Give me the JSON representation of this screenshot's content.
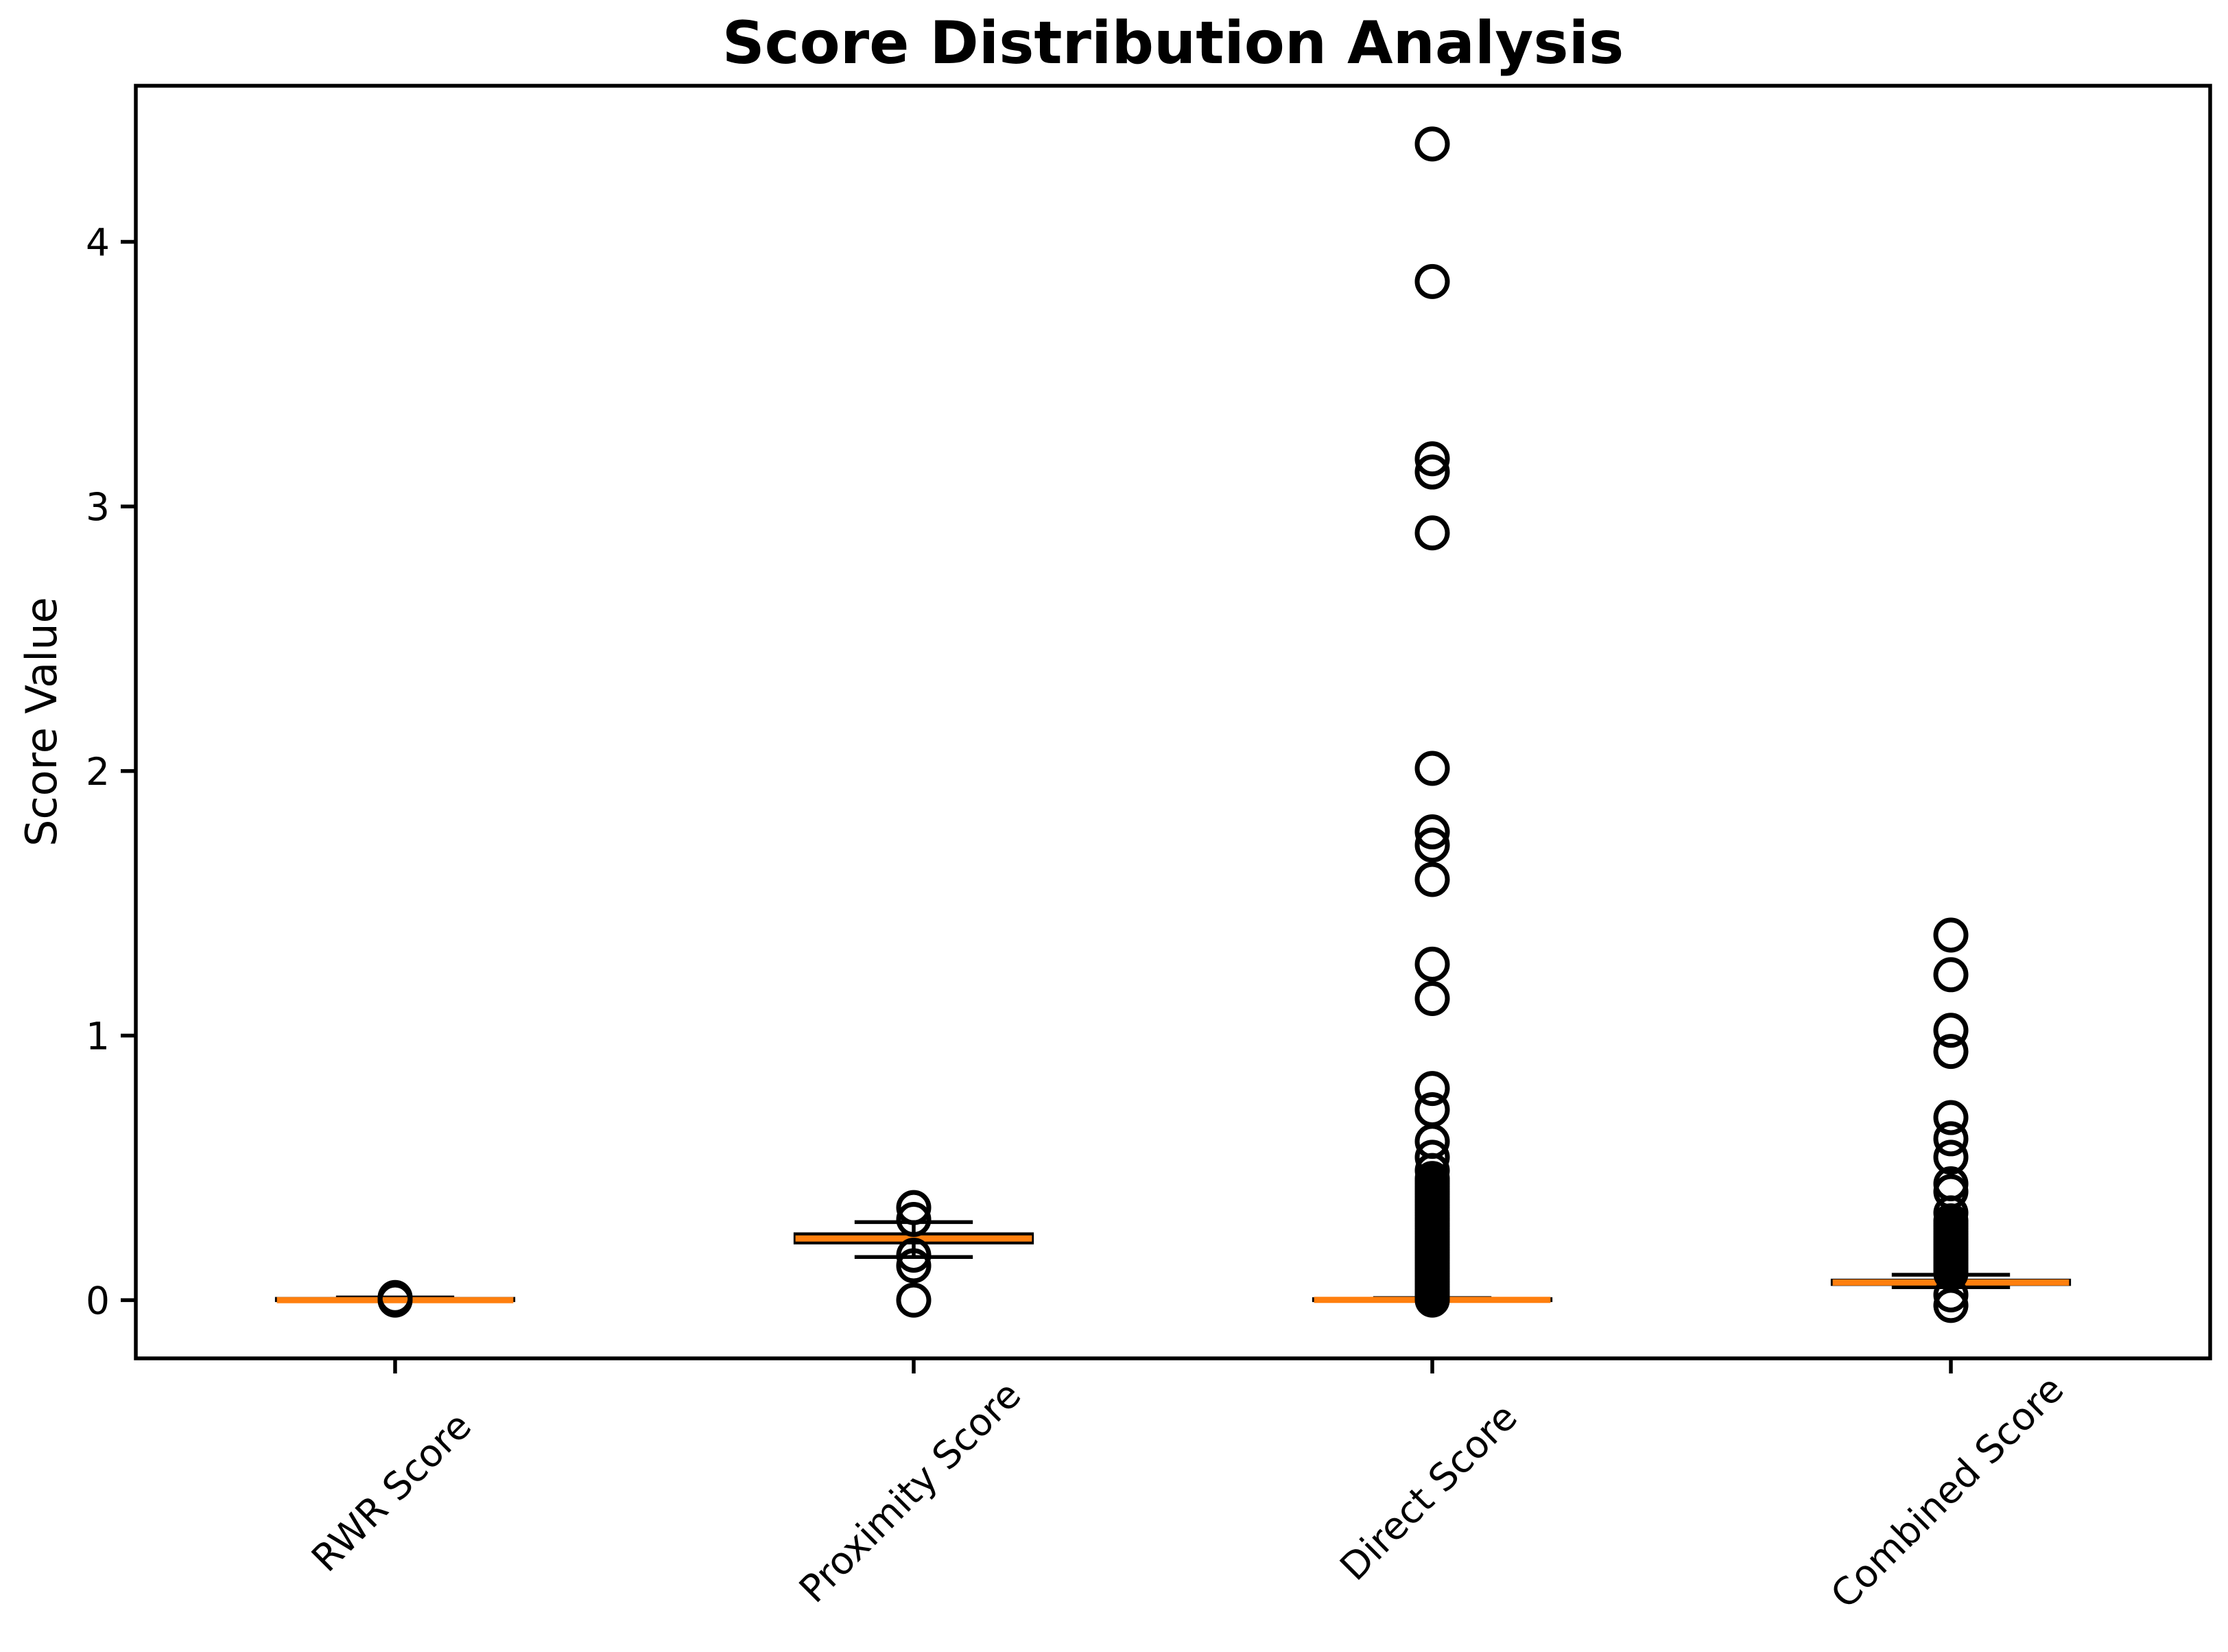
{
  "figure": {
    "background": "#ffffff"
  },
  "chart_data": {
    "type": "boxplot",
    "title": "Score Distribution Analysis",
    "ylabel": "Score Value",
    "xlabel": "",
    "grid": false,
    "legend_position": "none",
    "categories": [
      "RWR Score",
      "Proximity Score",
      "Direct Score",
      "Combined Score"
    ],
    "positions": [
      1,
      2,
      3,
      4
    ],
    "y_ticks": [
      0,
      1,
      2,
      3,
      4
    ],
    "ylim": [
      -0.22,
      4.59
    ],
    "xlim": [
      0.5,
      4.5
    ],
    "box_width": 0.456,
    "cap_width": 0.228,
    "colors": {
      "median": "#ff7f0e",
      "box_edge": "#000000",
      "whisker": "#000000",
      "flier_edge": "#000000",
      "spine": "#000000",
      "background": "#ffffff"
    },
    "series": [
      {
        "name": "RWR Score",
        "position": 1,
        "med": 0.0,
        "q1": 0.0,
        "q3": 0.005,
        "whislo": 0.0,
        "whishi": 0.01,
        "fliers": [
          0.01,
          0.0
        ]
      },
      {
        "name": "Proximity Score",
        "position": 2,
        "med": 0.233,
        "q1": 0.218,
        "q3": 0.249,
        "whislo": 0.163,
        "whishi": 0.295,
        "fliers": [
          0.35,
          0.305,
          0.17,
          0.13,
          0.0
        ]
      },
      {
        "name": "Direct Score",
        "position": 3,
        "med": 0.001,
        "q1": 0.0,
        "q3": 0.004,
        "whislo": 0.0,
        "whishi": 0.008,
        "fliers": [
          4.37,
          3.85,
          3.18,
          3.13,
          2.9,
          2.01,
          1.77,
          1.72,
          1.59,
          1.27,
          1.14,
          0.8,
          0.72,
          0.6,
          0.54,
          0.49,
          0.46,
          0.45,
          0.44,
          0.43,
          0.42,
          0.41,
          0.4,
          0.39,
          0.38,
          0.37,
          0.36,
          0.35,
          0.34,
          0.33,
          0.32,
          0.31,
          0.3,
          0.29,
          0.28,
          0.27,
          0.26,
          0.25,
          0.24,
          0.23,
          0.22,
          0.21,
          0.2,
          0.19,
          0.18,
          0.17,
          0.16,
          0.15,
          0.14,
          0.13,
          0.12,
          0.11,
          0.1,
          0.09,
          0.08,
          0.07,
          0.06,
          0.05,
          0.04,
          0.03,
          0.02,
          0.01,
          0.0
        ]
      },
      {
        "name": "Combined Score",
        "position": 4,
        "med": 0.067,
        "q1": 0.061,
        "q3": 0.074,
        "whislo": 0.049,
        "whishi": 0.096,
        "fliers": [
          1.38,
          1.23,
          1.02,
          0.94,
          0.69,
          0.61,
          0.54,
          0.44,
          0.41,
          0.33,
          0.3,
          0.29,
          0.28,
          0.27,
          0.26,
          0.25,
          0.24,
          0.23,
          0.22,
          0.21,
          0.2,
          0.19,
          0.18,
          0.17,
          0.16,
          0.15,
          0.14,
          0.13,
          0.12,
          0.11,
          0.1,
          0.02,
          -0.02
        ]
      }
    ]
  }
}
